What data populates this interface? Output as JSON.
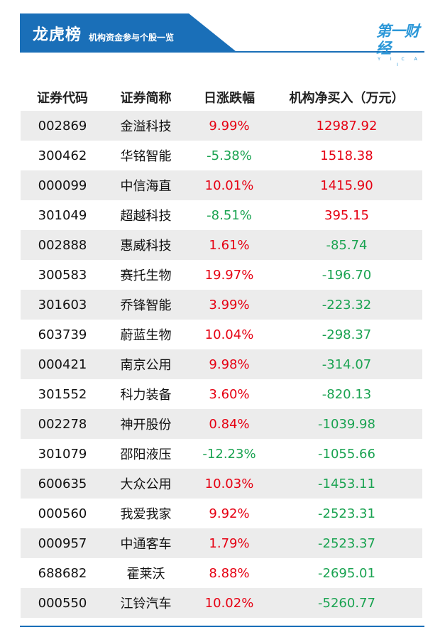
{
  "header": {
    "title": "龙虎榜",
    "subtitle": "机构资金参与个股一览",
    "logo_text": "第一财经",
    "logo_sub": "Y I C A I"
  },
  "table": {
    "columns": [
      "证券代码",
      "证券简称",
      "日涨跌幅",
      "机构净买入（万元）"
    ],
    "rows": [
      {
        "code": "002869",
        "name": "金溢科技",
        "change": "9.99%",
        "net": "12987.92",
        "change_dir": "up",
        "net_dir": "up"
      },
      {
        "code": "300462",
        "name": "华铭智能",
        "change": "-5.38%",
        "net": "1518.38",
        "change_dir": "down",
        "net_dir": "up"
      },
      {
        "code": "000099",
        "name": "中信海直",
        "change": "10.01%",
        "net": "1415.90",
        "change_dir": "up",
        "net_dir": "up"
      },
      {
        "code": "301049",
        "name": "超越科技",
        "change": "-8.51%",
        "net": "395.15",
        "change_dir": "down",
        "net_dir": "up"
      },
      {
        "code": "002888",
        "name": "惠威科技",
        "change": "1.61%",
        "net": "-85.74",
        "change_dir": "up",
        "net_dir": "down"
      },
      {
        "code": "300583",
        "name": "赛托生物",
        "change": "19.97%",
        "net": "-196.70",
        "change_dir": "up",
        "net_dir": "down"
      },
      {
        "code": "301603",
        "name": "乔锋智能",
        "change": "3.99%",
        "net": "-223.32",
        "change_dir": "up",
        "net_dir": "down"
      },
      {
        "code": "603739",
        "name": "蔚蓝生物",
        "change": "10.04%",
        "net": "-298.37",
        "change_dir": "up",
        "net_dir": "down"
      },
      {
        "code": "000421",
        "name": "南京公用",
        "change": "9.98%",
        "net": "-314.07",
        "change_dir": "up",
        "net_dir": "down"
      },
      {
        "code": "301552",
        "name": "科力装备",
        "change": "3.60%",
        "net": "-820.13",
        "change_dir": "up",
        "net_dir": "down"
      },
      {
        "code": "002278",
        "name": "神开股份",
        "change": "0.84%",
        "net": "-1039.98",
        "change_dir": "up",
        "net_dir": "down"
      },
      {
        "code": "301079",
        "name": "邵阳液压",
        "change": "-12.23%",
        "net": "-1055.66",
        "change_dir": "down",
        "net_dir": "down"
      },
      {
        "code": "600635",
        "name": "大众公用",
        "change": "10.03%",
        "net": "-1453.11",
        "change_dir": "up",
        "net_dir": "down"
      },
      {
        "code": "000560",
        "name": "我爱我家",
        "change": "9.92%",
        "net": "-2523.31",
        "change_dir": "up",
        "net_dir": "down"
      },
      {
        "code": "000957",
        "name": "中通客车",
        "change": "1.79%",
        "net": "-2523.37",
        "change_dir": "up",
        "net_dir": "down"
      },
      {
        "code": "688682",
        "name": "霍莱沃",
        "change": "8.88%",
        "net": "-2695.01",
        "change_dir": "up",
        "net_dir": "down"
      },
      {
        "code": "000550",
        "name": "江铃汽车",
        "change": "10.02%",
        "net": "-5260.77",
        "change_dir": "up",
        "net_dir": "down"
      }
    ]
  },
  "colors": {
    "brand_blue": "#1a6fb8",
    "logo_blue": "#2b97d8",
    "up_red": "#e60012",
    "down_green": "#1aa351",
    "row_shade": "#ececec"
  }
}
